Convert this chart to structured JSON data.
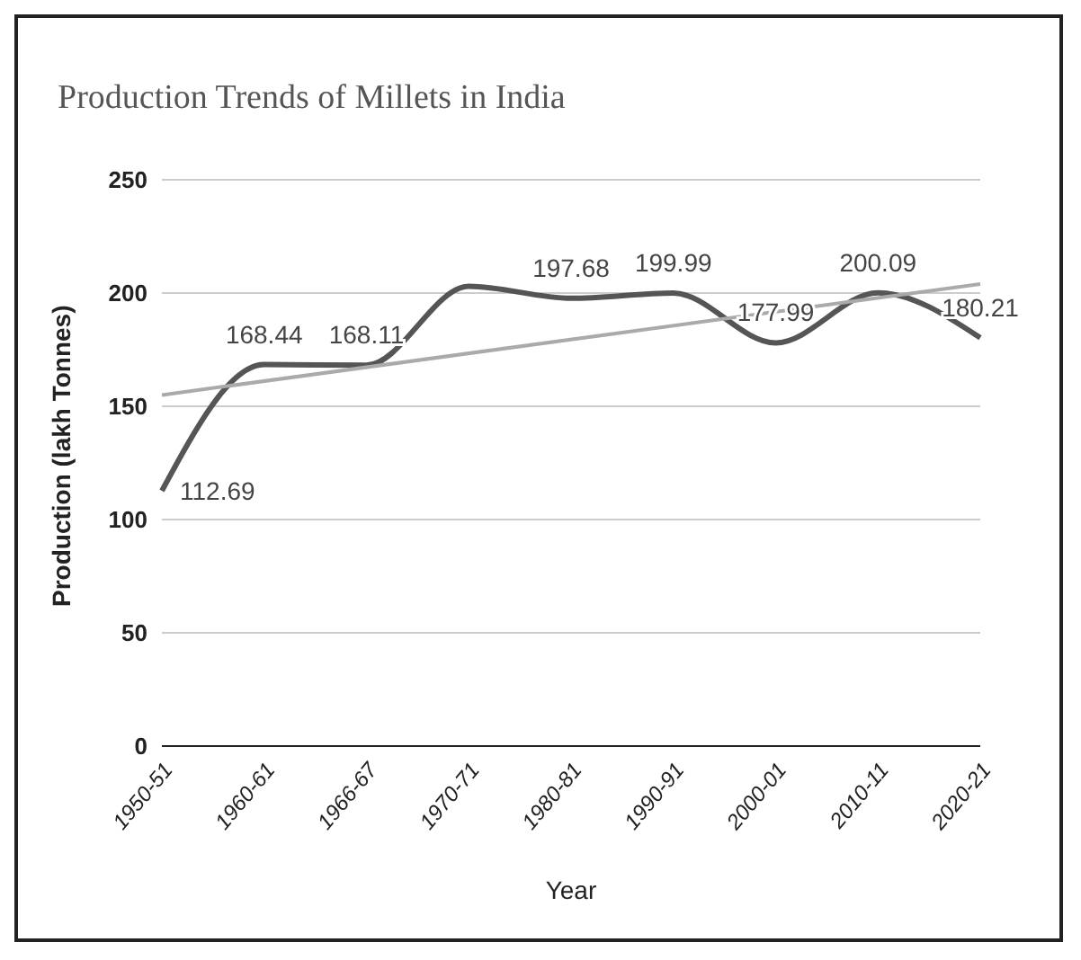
{
  "chart_data": {
    "type": "line",
    "title": "Production Trends of Millets in India",
    "xlabel": "Year",
    "ylabel": "Production (lakh Tonnes)",
    "categories": [
      "1950-51",
      "1960-61",
      "1966-67",
      "1970-71",
      "1980-81",
      "1990-91",
      "2000-01",
      "2010-11",
      "2020-21"
    ],
    "series": [
      {
        "color": "#555555",
        "values": [
          112.69,
          168.44,
          168.11,
          203,
          197.68,
          199.99,
          177.99,
          200.09,
          180.21
        ],
        "value_labels": [
          "112.69",
          "168.44",
          "168.11",
          null,
          "197.68",
          "199.99",
          "177.99",
          "200.09",
          "180.21"
        ]
      },
      {
        "color": "#aaaaaa",
        "x": [
          "1950-51",
          "2020-21"
        ],
        "values": [
          155,
          204
        ]
      }
    ],
    "ylim": [
      0,
      250
    ],
    "yticks": [
      0,
      50,
      100,
      150,
      200,
      250
    ],
    "grid": "y",
    "legend": false,
    "marker": "none",
    "line_style": "solid"
  }
}
